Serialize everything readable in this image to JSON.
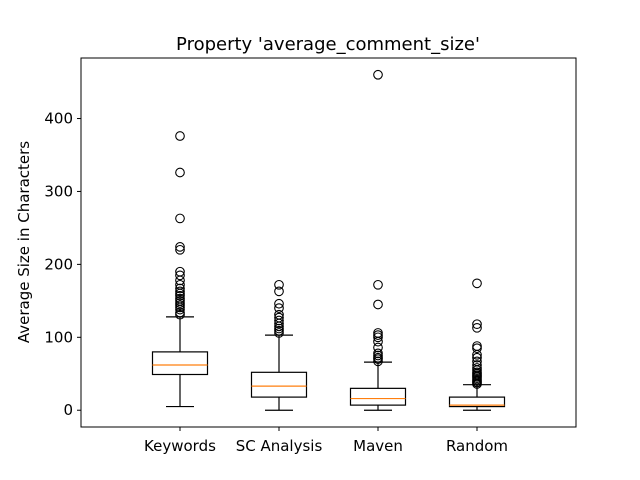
{
  "chart_data": {
    "type": "box",
    "title": "Property 'average_comment_size'",
    "xlabel": "",
    "ylabel": "Average Size in Characters",
    "ylim": [
      -23,
      483
    ],
    "yticks": [
      0,
      100,
      200,
      300,
      400
    ],
    "grid": false,
    "categories": [
      "Keywords",
      "SC Analysis",
      "Maven",
      "Random"
    ],
    "boxes": [
      {
        "name": "Keywords",
        "whisker_low": 5,
        "q1": 49,
        "median": 62,
        "q3": 80,
        "whisker_high": 128,
        "outliers": [
          131,
          134,
          138,
          141,
          144,
          147,
          150,
          153,
          157,
          160,
          163,
          167,
          172,
          178,
          185,
          190,
          220,
          224,
          263,
          326,
          376
        ]
      },
      {
        "name": "SC Analysis",
        "whisker_low": 0,
        "q1": 18,
        "median": 33,
        "q3": 52,
        "whisker_high": 103,
        "outliers": [
          106,
          109,
          112,
          115,
          119,
          123,
          127,
          131,
          140,
          146,
          163,
          172
        ]
      },
      {
        "name": "Maven",
        "whisker_low": 0,
        "q1": 7,
        "median": 16,
        "q3": 30,
        "whisker_high": 66,
        "outliers": [
          67,
          70,
          72,
          75,
          78,
          86,
          94,
          100,
          103,
          106,
          145,
          172,
          460
        ]
      },
      {
        "name": "Random",
        "whisker_low": 0,
        "q1": 5,
        "median": 7,
        "q3": 18,
        "whisker_high": 35,
        "outliers": [
          36,
          38,
          40,
          42,
          44,
          46,
          48,
          50,
          52,
          55,
          58,
          62,
          67,
          72,
          76,
          85,
          88,
          113,
          118,
          174
        ]
      }
    ],
    "colors": {
      "box": "#000000",
      "median": "#ff7f0e"
    }
  }
}
